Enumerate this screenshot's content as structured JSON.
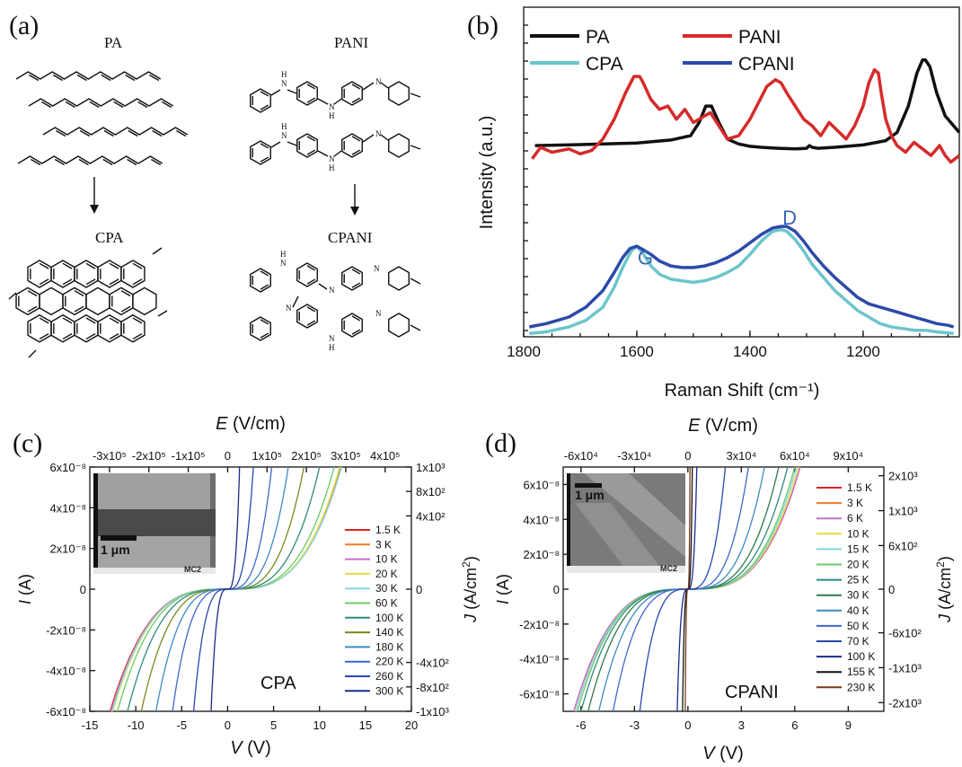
{
  "panels": {
    "a": {
      "label": "(a)",
      "pa_title": "PA",
      "pani_title": "PANI",
      "cpa_title": "CPA",
      "cpani_title": "CPANI",
      "atoms": {
        "H": "H",
        "N": "N"
      }
    },
    "b": {
      "label": "(b)"
    },
    "c": {
      "label": "(c)",
      "inset_scale": "1 μm",
      "inset_logo": "MC2"
    },
    "d": {
      "label": "(d)",
      "inset_scale": "1 μm",
      "inset_logo": "MC2"
    }
  },
  "chart_data": [
    {
      "id": "b",
      "type": "line",
      "xlabel": "Raman Shift (cm⁻¹)",
      "ylabel": "Intensity (a.u.)",
      "xlim": [
        1800,
        1030
      ],
      "ylim": [
        0,
        1
      ],
      "x_ticks": [
        1800,
        1600,
        1400,
        1200
      ],
      "x_tick_labels": [
        "1800",
        "1600",
        "1400",
        "1200"
      ],
      "y_tick_labels": [],
      "annotations": [
        {
          "text": "G",
          "x": 1585,
          "y": 0.22
        },
        {
          "text": "D",
          "x": 1330,
          "y": 0.34
        }
      ],
      "legend": "top",
      "series": [
        {
          "name": "PA",
          "color": "#111111",
          "x": [
            1780,
            1700,
            1600,
            1540,
            1505,
            1490,
            1478,
            1468,
            1455,
            1440,
            1420,
            1400,
            1380,
            1350,
            1320,
            1300,
            1295,
            1290,
            1280,
            1250,
            1200,
            1160,
            1140,
            1120,
            1105,
            1095,
            1090,
            1082,
            1070,
            1055,
            1040,
            1030
          ],
          "y": [
            0.58,
            0.583,
            0.588,
            0.597,
            0.61,
            0.65,
            0.7,
            0.7,
            0.65,
            0.6,
            0.585,
            0.578,
            0.575,
            0.572,
            0.57,
            0.572,
            0.58,
            0.575,
            0.572,
            0.575,
            0.582,
            0.595,
            0.62,
            0.7,
            0.8,
            0.84,
            0.84,
            0.82,
            0.74,
            0.67,
            0.64,
            0.62
          ]
        },
        {
          "name": "PANI",
          "color": "#d62a2a",
          "x": [
            1785,
            1770,
            1750,
            1720,
            1700,
            1680,
            1660,
            1640,
            1620,
            1605,
            1595,
            1590,
            1575,
            1560,
            1545,
            1530,
            1515,
            1500,
            1485,
            1470,
            1455,
            1440,
            1420,
            1400,
            1385,
            1370,
            1355,
            1345,
            1335,
            1320,
            1305,
            1290,
            1275,
            1260,
            1245,
            1230,
            1215,
            1200,
            1190,
            1180,
            1173,
            1168,
            1160,
            1150,
            1140,
            1125,
            1110,
            1095,
            1080,
            1065,
            1055,
            1045,
            1030
          ],
          "y": [
            0.54,
            0.575,
            0.56,
            0.57,
            0.555,
            0.565,
            0.6,
            0.66,
            0.74,
            0.79,
            0.79,
            0.775,
            0.72,
            0.69,
            0.7,
            0.66,
            0.69,
            0.65,
            0.665,
            0.68,
            0.64,
            0.6,
            0.61,
            0.66,
            0.71,
            0.76,
            0.78,
            0.77,
            0.74,
            0.7,
            0.66,
            0.64,
            0.61,
            0.65,
            0.625,
            0.6,
            0.64,
            0.7,
            0.77,
            0.81,
            0.8,
            0.74,
            0.66,
            0.61,
            0.58,
            0.56,
            0.59,
            0.57,
            0.55,
            0.58,
            0.55,
            0.53,
            0.55
          ]
        },
        {
          "name": "CPA",
          "color": "#6cc5cc",
          "x": [
            1790,
            1760,
            1720,
            1690,
            1660,
            1640,
            1625,
            1610,
            1600,
            1590,
            1575,
            1560,
            1540,
            1520,
            1500,
            1480,
            1460,
            1440,
            1420,
            1400,
            1380,
            1360,
            1345,
            1335,
            1320,
            1305,
            1290,
            1270,
            1250,
            1230,
            1210,
            1190,
            1170,
            1150,
            1130,
            1110,
            1090,
            1070,
            1050,
            1040
          ],
          "y": [
            0.01,
            0.015,
            0.03,
            0.05,
            0.09,
            0.15,
            0.21,
            0.26,
            0.275,
            0.255,
            0.215,
            0.19,
            0.175,
            0.17,
            0.165,
            0.17,
            0.18,
            0.195,
            0.215,
            0.25,
            0.29,
            0.32,
            0.325,
            0.32,
            0.295,
            0.26,
            0.22,
            0.18,
            0.14,
            0.11,
            0.08,
            0.06,
            0.04,
            0.03,
            0.025,
            0.02,
            0.02,
            0.015,
            0.012,
            0.01
          ]
        },
        {
          "name": "CPANI",
          "color": "#2c4aa8",
          "x": [
            1790,
            1760,
            1720,
            1690,
            1660,
            1640,
            1625,
            1612,
            1600,
            1590,
            1575,
            1560,
            1540,
            1520,
            1500,
            1480,
            1460,
            1440,
            1420,
            1400,
            1380,
            1360,
            1345,
            1335,
            1320,
            1305,
            1290,
            1270,
            1250,
            1230,
            1210,
            1190,
            1170,
            1150,
            1130,
            1110,
            1090,
            1070,
            1050,
            1040
          ],
          "y": [
            0.03,
            0.04,
            0.06,
            0.09,
            0.14,
            0.195,
            0.24,
            0.268,
            0.275,
            0.265,
            0.25,
            0.23,
            0.215,
            0.21,
            0.21,
            0.215,
            0.225,
            0.24,
            0.26,
            0.285,
            0.31,
            0.33,
            0.335,
            0.335,
            0.32,
            0.29,
            0.255,
            0.215,
            0.18,
            0.15,
            0.12,
            0.1,
            0.09,
            0.08,
            0.07,
            0.06,
            0.05,
            0.04,
            0.035,
            0.03
          ]
        }
      ]
    },
    {
      "id": "c",
      "type": "line",
      "title": "CPA",
      "xlabel": "V (V)",
      "ylabel": "I (A)",
      "top_label": "E (V/cm)",
      "right_label": "J (A/cm²)",
      "xlim": [
        -15,
        20
      ],
      "ylim": [
        -6e-08,
        6e-08
      ],
      "x_ticks": [
        -15,
        -10,
        -5,
        0,
        5,
        10,
        15,
        20
      ],
      "x_tick_labels": [
        "-15",
        "-10",
        "-5",
        "0",
        "5",
        "10",
        "15",
        "20"
      ],
      "y_ticks": [
        -6e-08,
        -4e-08,
        -2e-08,
        0,
        2e-08,
        4e-08,
        6e-08
      ],
      "y_tick_labels": [
        "-6x10⁻⁸",
        "-4x10⁻⁸",
        "-2x10⁻⁸",
        "0",
        "2x10⁻⁸",
        "4x10⁻⁸",
        "6x10⁻⁸"
      ],
      "top_ticks_v": [
        -12.857,
        -8.571,
        -4.286,
        0,
        4.286,
        8.571,
        12.857,
        17.143
      ],
      "top_tick_labels": [
        "-3x10⁵",
        "-2x10⁵",
        "-1x10⁵",
        "0",
        "1x10⁵",
        "2x10⁵",
        "3x10⁵",
        "4x10⁵"
      ],
      "right_ticks_i": [
        -6e-08,
        -4.8e-08,
        -3.6e-08,
        0,
        3.6e-08,
        4.8e-08,
        6e-08
      ],
      "right_tick_labels": [
        "-1x10³",
        "-8x10²",
        "-4x10²",
        "0",
        "4x10²",
        "8x10²",
        "1x10³"
      ],
      "legend": "right",
      "series": [
        {
          "name": "1.5 K",
          "color": "#e02424",
          "vmax": 12.3,
          "vneg": 12.8
        },
        {
          "name": "3 K",
          "color": "#f07c24",
          "vmax": 12.3,
          "vneg": 12.7
        },
        {
          "name": "10 K",
          "color": "#c070c8",
          "vmax": 12.4,
          "vneg": 12.7
        },
        {
          "name": "20 K",
          "color": "#e8dc3c",
          "vmax": 12.2,
          "vneg": 12.5
        },
        {
          "name": "30 K",
          "color": "#80d8e8",
          "vmax": 12.4,
          "vneg": 12.6
        },
        {
          "name": "60 K",
          "color": "#6cc868",
          "vmax": 11.6,
          "vneg": 12.0
        },
        {
          "name": "100 K",
          "color": "#2e8a7a",
          "vmax": 10.0,
          "vneg": 10.9
        },
        {
          "name": "140 K",
          "color": "#7a8a1e",
          "vmax": 8.3,
          "vneg": 9.4
        },
        {
          "name": "180 K",
          "color": "#3c8ac0",
          "vmax": 6.6,
          "vneg": 7.8
        },
        {
          "name": "220 K",
          "color": "#3c68cc",
          "vmax": 4.8,
          "vneg": 6.0
        },
        {
          "name": "260 K",
          "color": "#2848b0",
          "vmax": 2.8,
          "vneg": 3.7
        },
        {
          "name": "300 K",
          "color": "#1c2a8c",
          "vmax": 1.3,
          "vneg": 1.8
        }
      ]
    },
    {
      "id": "d",
      "type": "line",
      "title": "CPANI",
      "xlabel": "V (V)",
      "ylabel": "I (A)",
      "top_label": "E (V/cm)",
      "right_label": "J (A/cm²)",
      "xlim": [
        -7,
        11
      ],
      "ylim": [
        -7e-08,
        7e-08
      ],
      "x_ticks": [
        -6,
        -3,
        0,
        3,
        6,
        9
      ],
      "x_tick_labels": [
        "-6",
        "-3",
        "0",
        "3",
        "6",
        "9"
      ],
      "y_ticks": [
        -6e-08,
        -4e-08,
        -2e-08,
        0,
        2e-08,
        4e-08,
        6e-08
      ],
      "y_tick_labels": [
        "-6x10⁻⁸",
        "-4x10⁻⁸",
        "-2x10⁻⁸",
        "0",
        "2x10⁻⁸",
        "4x10⁻⁸",
        "6x10⁻⁸"
      ],
      "top_ticks_v": [
        -6,
        -3,
        0,
        3,
        6,
        9
      ],
      "top_tick_labels": [
        "-6x10⁴",
        "-3x10⁴",
        "0",
        "3x10⁴",
        "6x10⁴",
        "9x10⁴"
      ],
      "right_ticks_i": [
        -6.5e-08,
        -4.5e-08,
        -2.5e-08,
        0,
        2.5e-08,
        4.5e-08,
        6.5e-08
      ],
      "right_tick_labels": [
        "-2x10³",
        "-1x10³",
        "-6x10²",
        "0",
        "6x10²",
        "1x10³",
        "2x10³"
      ],
      "legend": "right",
      "series": [
        {
          "name": "1.5 K",
          "color": "#e02424",
          "vmax": 6.3,
          "vneg": 6.4
        },
        {
          "name": "3 K",
          "color": "#f07c24",
          "vmax": 6.3,
          "vneg": 6.4
        },
        {
          "name": "6 K",
          "color": "#c070c8",
          "vmax": 6.3,
          "vneg": 6.4
        },
        {
          "name": "10 K",
          "color": "#e8dc3c",
          "vmax": 6.2,
          "vneg": 6.3
        },
        {
          "name": "15 K",
          "color": "#80d8e8",
          "vmax": 6.1,
          "vneg": 6.3
        },
        {
          "name": "20 K",
          "color": "#6cc868",
          "vmax": 6.0,
          "vneg": 6.2
        },
        {
          "name": "25 K",
          "color": "#2e8a7a",
          "vmax": 5.6,
          "vneg": 6.0
        },
        {
          "name": "30 K",
          "color": "#2e7a4a",
          "vmax": 5.1,
          "vneg": 5.6
        },
        {
          "name": "40 K",
          "color": "#3c8ac0",
          "vmax": 4.3,
          "vneg": 5.0
        },
        {
          "name": "50 K",
          "color": "#3c68cc",
          "vmax": 3.4,
          "vneg": 4.2
        },
        {
          "name": "70 K",
          "color": "#2848b0",
          "vmax": 2.1,
          "vneg": 2.7
        },
        {
          "name": "100 K",
          "color": "#1c2a8c",
          "vmax": 0.5,
          "vneg": 0.6
        },
        {
          "name": "155 K",
          "color": "#111111",
          "vmax": 0.25,
          "vneg": 0.3
        },
        {
          "name": "230 K",
          "color": "#7a3a1a",
          "vmax": 0.12,
          "vneg": 0.15
        }
      ]
    }
  ]
}
